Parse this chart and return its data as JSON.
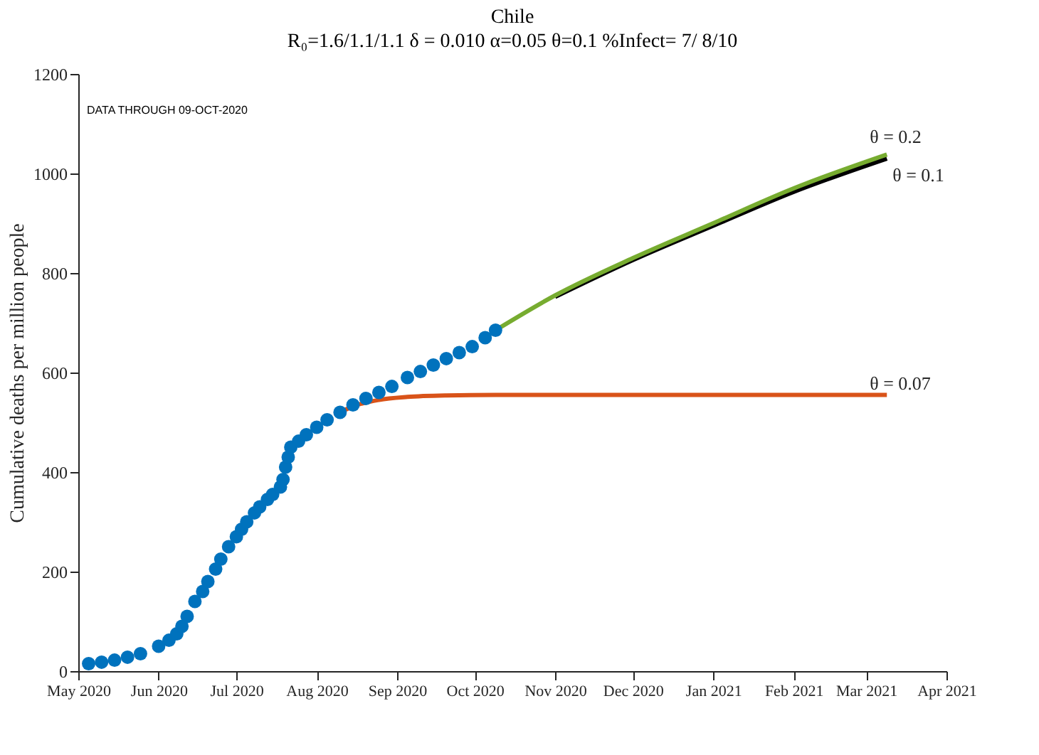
{
  "chart_data": {
    "type": "line",
    "title": "Chile",
    "subtitle": "R₀=1.6/1.1/1.1  δ = 0.010  α=0.05  θ=0.1  %Infect= 7/ 8/10",
    "ylabel": "Cumulative deaths per million people",
    "annotations": [
      "DATA THROUGH 09-OCT-2020"
    ],
    "xlim": [
      "2020-05-01",
      "2021-04-01"
    ],
    "xticks": [
      {
        "value": "2020-05-01",
        "label": "May 2020"
      },
      {
        "value": "2020-06-01",
        "label": "Jun 2020"
      },
      {
        "value": "2020-07-01",
        "label": "Jul 2020"
      },
      {
        "value": "2020-08-01",
        "label": "Aug 2020"
      },
      {
        "value": "2020-09-01",
        "label": "Sep 2020"
      },
      {
        "value": "2020-10-01",
        "label": "Oct 2020"
      },
      {
        "value": "2020-11-01",
        "label": "Nov 2020"
      },
      {
        "value": "2020-12-01",
        "label": "Dec 2020"
      },
      {
        "value": "2021-01-01",
        "label": "Jan 2021"
      },
      {
        "value": "2021-02-01",
        "label": "Feb 2021"
      },
      {
        "value": "2021-03-01",
        "label": "Mar 2021"
      },
      {
        "value": "2021-04-01",
        "label": "Apr 2021"
      }
    ],
    "ylim": [
      0,
      1200
    ],
    "yticks": [
      0,
      200,
      400,
      600,
      800,
      1000,
      1200
    ],
    "grid": false,
    "series": [
      {
        "name": "θ = 0.1",
        "color": "#000000",
        "marker": "none",
        "x": [
          "2020-11-01",
          "2020-12-01",
          "2021-01-01",
          "2021-02-01",
          "2021-03-09"
        ],
        "values": [
          752,
          826,
          895,
          963,
          1030
        ]
      },
      {
        "name": "θ = 0.2",
        "color": "#77ac30",
        "marker": "none",
        "x": [
          "2020-10-09",
          "2020-11-01",
          "2020-12-01",
          "2021-01-01",
          "2021-02-01",
          "2021-03-09"
        ],
        "values": [
          685,
          755,
          830,
          900,
          970,
          1038
        ]
      },
      {
        "name": "θ = 0.07",
        "color": "#d95319",
        "marker": "none",
        "x": [
          "2020-08-10",
          "2020-08-15",
          "2020-08-25",
          "2020-09-05",
          "2020-09-20",
          "2020-10-09",
          "2020-12-01",
          "2021-03-09"
        ],
        "values": [
          520,
          532,
          545,
          551,
          554,
          555,
          555,
          555
        ]
      },
      {
        "color": "#0072bd",
        "type": "scatter",
        "marker": "circle",
        "x": [
          "2020-05-05",
          "2020-05-10",
          "2020-05-15",
          "2020-05-20",
          "2020-05-25",
          "2020-06-01",
          "2020-06-05",
          "2020-06-08",
          "2020-06-10",
          "2020-06-12",
          "2020-06-15",
          "2020-06-18",
          "2020-06-20",
          "2020-06-23",
          "2020-06-25",
          "2020-06-28",
          "2020-07-01",
          "2020-07-03",
          "2020-07-05",
          "2020-07-08",
          "2020-07-10",
          "2020-07-13",
          "2020-07-15",
          "2020-07-18",
          "2020-07-19",
          "2020-07-20",
          "2020-07-21",
          "2020-07-22",
          "2020-07-25",
          "2020-07-28",
          "2020-08-01",
          "2020-08-05",
          "2020-08-10",
          "2020-08-15",
          "2020-08-20",
          "2020-08-25",
          "2020-08-30",
          "2020-09-05",
          "2020-09-10",
          "2020-09-15",
          "2020-09-20",
          "2020-09-25",
          "2020-09-30",
          "2020-10-05",
          "2020-10-09"
        ],
        "values": [
          15,
          18,
          22,
          28,
          35,
          50,
          62,
          75,
          90,
          110,
          140,
          160,
          180,
          205,
          225,
          250,
          270,
          285,
          300,
          318,
          330,
          345,
          355,
          370,
          385,
          410,
          430,
          450,
          462,
          475,
          490,
          505,
          520,
          535,
          548,
          560,
          572,
          590,
          602,
          615,
          628,
          640,
          652,
          670,
          685
        ]
      }
    ]
  }
}
